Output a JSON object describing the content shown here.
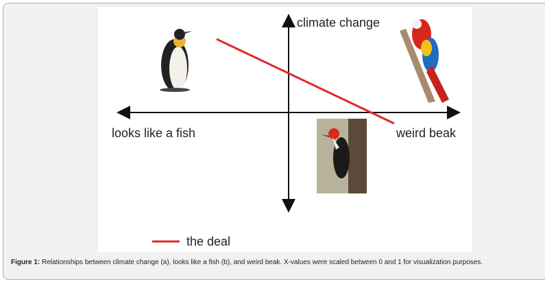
{
  "figure": {
    "y_axis_label": "climate change",
    "x_axis_left_label": "looks like a fish",
    "x_axis_right_label": "weird beak",
    "legend": "the deal"
  },
  "caption": {
    "label": "Figure 1:",
    "text": "Relationships between climate change (a), looks like a fish (b), and weird beak. X-values were scaled between 0 and 1 for visualization purposes."
  }
}
